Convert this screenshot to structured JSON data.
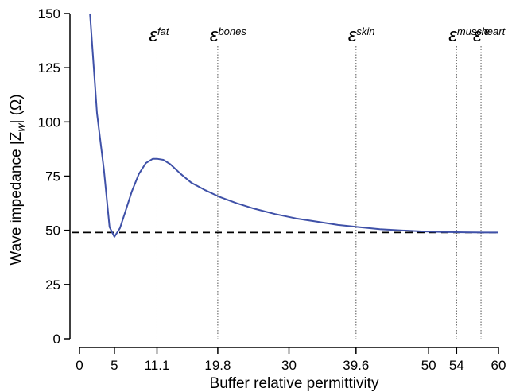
{
  "chart_data": {
    "type": "line",
    "title": "",
    "xlabel": "Buffer relative permittivity",
    "ylabel": {
      "main": "Wave impedance |Z",
      "sub": "w",
      "tail": "| (Ω)"
    },
    "xlim": [
      0,
      60
    ],
    "ylim": [
      0,
      150
    ],
    "x_ticks": [
      0,
      5,
      11.1,
      19.8,
      30,
      39.6,
      50,
      54,
      60
    ],
    "x_tick_labels": [
      "0",
      "5",
      "11.1",
      "19.8",
      "30",
      "39.6",
      "50",
      "54",
      "60"
    ],
    "y_ticks": [
      0,
      25,
      50,
      75,
      100,
      125,
      150
    ],
    "y_tick_labels": [
      "0",
      "25",
      "50",
      "75",
      "100",
      "125",
      "150"
    ],
    "grid": false,
    "legend": "none",
    "colors": {
      "curve": "#3f51a8",
      "reference": "#000000",
      "markers": "#555555"
    },
    "series": [
      {
        "x": [
          1.5,
          2.5,
          3.5,
          4.3,
          5.0,
          5.8,
          6.5,
          7.5,
          8.5,
          9.5,
          10.5,
          11.1,
          12.0,
          13.0,
          14.5,
          16.0,
          18.0,
          20.0,
          22.5,
          25.0,
          28.0,
          31.0,
          34.0,
          37.0,
          40.0,
          43.0,
          46.0,
          49.0,
          52.0,
          55.0,
          58.0,
          60.0
        ],
        "values": [
          150,
          104,
          78,
          51.5,
          47,
          51,
          58,
          68,
          76,
          81,
          83,
          83,
          82.5,
          80.5,
          76,
          72,
          68.5,
          65.5,
          62.5,
          60,
          57.5,
          55.5,
          54,
          52.5,
          51.5,
          50.5,
          50,
          49.5,
          49.2,
          49.1,
          49,
          49
        ]
      }
    ],
    "reference_line": {
      "y": 49,
      "style": "dashed"
    },
    "annotations": [
      {
        "x": 11.1,
        "symbol": "ε",
        "sub": "fat"
      },
      {
        "x": 19.8,
        "symbol": "ε",
        "sub": "bones"
      },
      {
        "x": 39.6,
        "symbol": "ε",
        "sub": "skin"
      },
      {
        "x": 54,
        "symbol": "ε",
        "sub": "muscle"
      },
      {
        "x": 57.5,
        "symbol": "ε",
        "sub": "heart"
      }
    ]
  }
}
